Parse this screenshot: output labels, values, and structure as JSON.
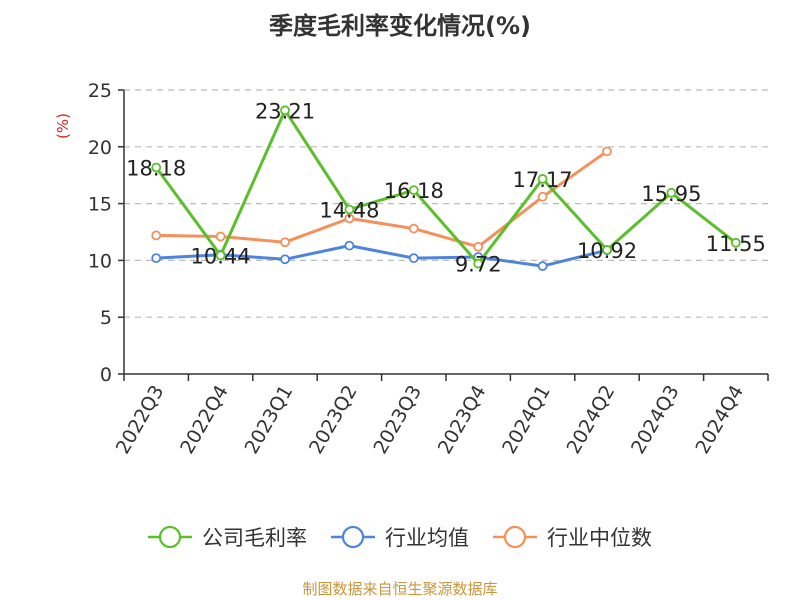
{
  "source": "制图数据来自恒生聚源数据库",
  "colors": {
    "green": "#5bbf2a",
    "blue": "#4f84dc",
    "orange": "#f4905a",
    "unit": "#e02020",
    "source": "#c8963c",
    "grid": "#bbbbbb",
    "axis": "#333333"
  },
  "chart_data": {
    "type": "line",
    "title": "季度毛利率变化情况(%)",
    "ylabel": "(%)",
    "xlabel": "",
    "ylim": [
      0,
      25
    ],
    "yticks": [
      0,
      5,
      10,
      15,
      20,
      25
    ],
    "grid": true,
    "legend_position": "bottom",
    "categories": [
      "2022Q3",
      "2022Q4",
      "2023Q1",
      "2023Q2",
      "2023Q3",
      "2023Q4",
      "2024Q1",
      "2024Q2",
      "2024Q3",
      "2024Q4"
    ],
    "series": [
      {
        "name": "公司毛利率",
        "color": "#5bbf2a",
        "values": [
          18.18,
          10.44,
          23.21,
          14.48,
          16.18,
          9.72,
          17.17,
          10.92,
          15.95,
          11.55
        ],
        "labels": [
          "18.18",
          "10.44",
          "23.21",
          "14.48",
          "16.18",
          "9.72",
          "17.17",
          "10.92",
          "15.95",
          "11.55"
        ]
      },
      {
        "name": "行业均值",
        "color": "#4f84dc",
        "values": [
          10.2,
          10.5,
          10.1,
          11.3,
          10.2,
          10.3,
          9.5,
          10.9,
          null,
          null
        ]
      },
      {
        "name": "行业中位数",
        "color": "#f4905a",
        "values": [
          12.2,
          12.1,
          11.6,
          13.7,
          12.8,
          11.2,
          15.6,
          19.6,
          null,
          null
        ]
      }
    ]
  }
}
